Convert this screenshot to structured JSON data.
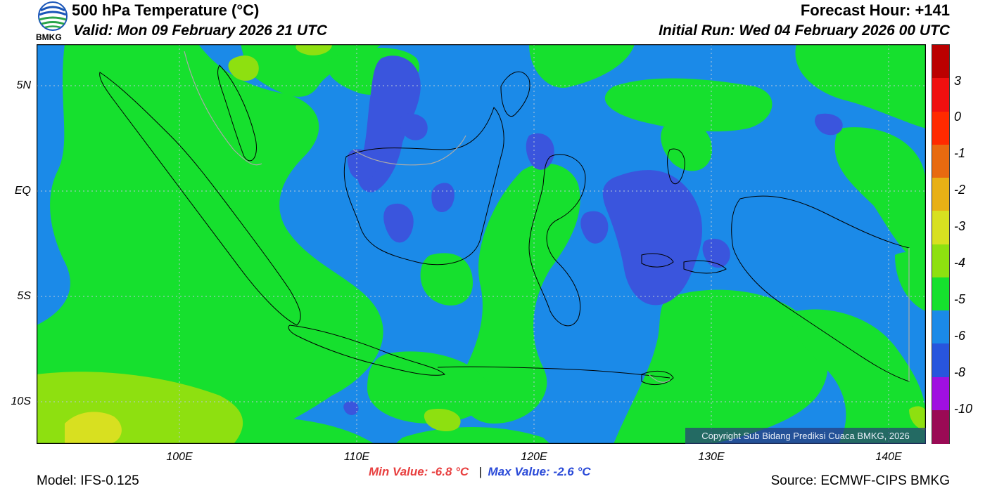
{
  "header": {
    "title": "500 hPa Temperature (°C)",
    "valid": "Valid: Mon 09 February 2026 21 UTC",
    "forecast_hour": "Forecast Hour: +141",
    "initial_run": "Initial Run: Wed 04 February 2026 00 UTC",
    "logo_text": "BMKG"
  },
  "footer": {
    "model": "Model: IFS-0.125",
    "min_value": "Min Value: -6.8 °C",
    "separator": "|",
    "max_value": "Max Value: -2.6 °C",
    "source": "Source: ECMWF-CIPS BMKG",
    "copyright": "Copyright Sub Bidang Prediksi Cuaca BMKG, 2026"
  },
  "map": {
    "lat_labels": [
      "5N",
      "EQ",
      "5S",
      "10S"
    ],
    "lat_values": [
      5,
      0,
      -5,
      -10
    ],
    "lon_labels": [
      "100E",
      "110E",
      "120E",
      "130E",
      "140E"
    ],
    "lon_values": [
      100,
      110,
      120,
      130,
      140
    ],
    "lon_range": [
      92,
      142.2
    ],
    "lat_range": [
      -12,
      7
    ]
  },
  "colorbar": {
    "labels": [
      "3",
      "0",
      "-1",
      "-2",
      "-3",
      "-4",
      "-5",
      "-6",
      "-8",
      "-10"
    ],
    "colors": [
      "#bb0000",
      "#f01010",
      "#ff2a00",
      "#e86a10",
      "#e8b015",
      "#d8e020",
      "#8ee010",
      "#16e02e",
      "#1b8ae8",
      "#2855dd",
      "#a010e0",
      "#9a0a55"
    ]
  },
  "colors": {
    "green": "#16e02e",
    "blue": "#1b8ae8",
    "dark_blue": "#3a55dd",
    "light_green": "#8ee010",
    "yellow_green": "#d8e020",
    "min_color": "#e84040",
    "max_color": "#2a4ad8"
  }
}
